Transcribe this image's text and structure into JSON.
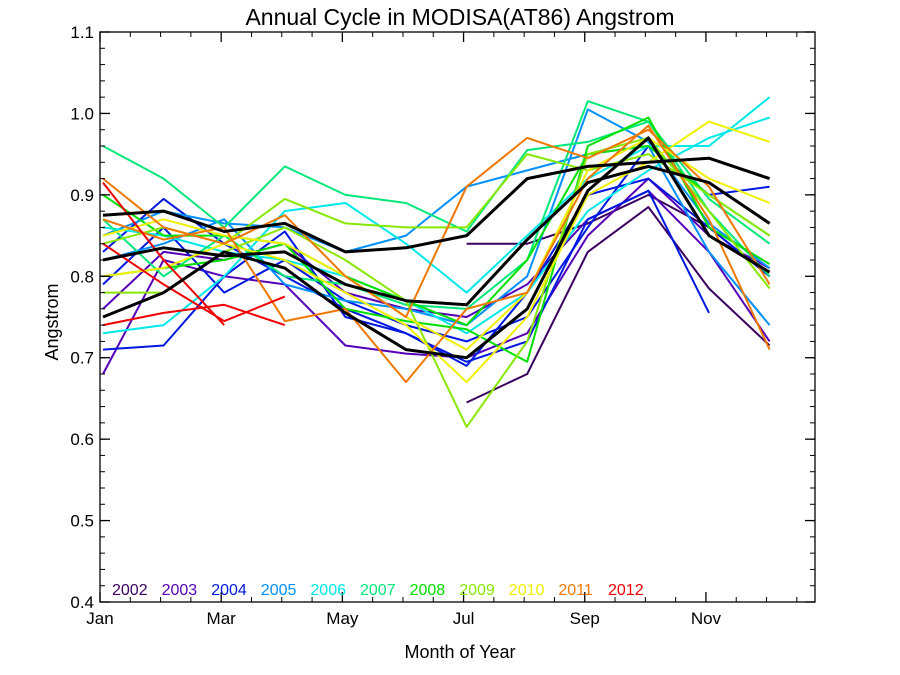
{
  "chart_data": {
    "type": "line",
    "title": "Annual Cycle in MODISA(AT86) Angstrom",
    "xlabel": "Month of Year",
    "ylabel": "Angstrom",
    "ylim": [
      0.4,
      1.1
    ],
    "xlim": [
      1,
      12.8
    ],
    "y_ticks": [
      "0.4",
      "0.5",
      "0.6",
      "0.7",
      "0.8",
      "0.9",
      "1.0",
      "1.1"
    ],
    "x_ticks": [
      {
        "label": "Jan",
        "month": 1
      },
      {
        "label": "Mar",
        "month": 3
      },
      {
        "label": "May",
        "month": 5
      },
      {
        "label": "Jul",
        "month": 7
      },
      {
        "label": "Sep",
        "month": 9
      },
      {
        "label": "Nov",
        "month": 11
      }
    ],
    "months": [
      1.05,
      2.05,
      3.05,
      4.05,
      5.05,
      6.05,
      7.05,
      8.05,
      9.05,
      10.05,
      11.05,
      12.05
    ],
    "legend_position": "bottom-left",
    "series": [
      {
        "name": "2002",
        "color": "#3b0060",
        "values": [
          null,
          null,
          null,
          null,
          null,
          null,
          0.645,
          0.68,
          0.83,
          0.885,
          0.785,
          0.715
        ]
      },
      {
        "name": "2002",
        "color": "#3b0060",
        "values": [
          null,
          null,
          null,
          null,
          null,
          null,
          0.84,
          0.84,
          0.865,
          0.9,
          0.86,
          0.8
        ]
      },
      {
        "name": "2003",
        "color": "#5500b8",
        "values": [
          0.68,
          0.82,
          0.8,
          0.79,
          0.715,
          0.705,
          0.7,
          0.73,
          0.85,
          0.92,
          0.85,
          0.81
        ]
      },
      {
        "name": "2003",
        "color": "#5500b8",
        "values": [
          0.76,
          0.83,
          0.82,
          0.84,
          0.78,
          0.76,
          0.75,
          0.79,
          0.87,
          0.905,
          0.83,
          0.72
        ]
      },
      {
        "name": "2004",
        "color": "#0018e0",
        "values": [
          0.71,
          0.715,
          0.8,
          0.855,
          0.75,
          0.73,
          0.695,
          0.72,
          0.87,
          0.905,
          0.755,
          null
        ]
      },
      {
        "name": "2004",
        "color": "#0018e0",
        "values": [
          0.79,
          0.86,
          0.78,
          0.82,
          0.77,
          0.74,
          0.72,
          0.75,
          0.86,
          0.96,
          0.9,
          0.91
        ]
      },
      {
        "name": "2004",
        "color": "#0018e0",
        "values": [
          0.83,
          0.895,
          0.84,
          0.8,
          0.76,
          0.73,
          0.69,
          0.78,
          0.9,
          0.92,
          0.86,
          0.8
        ]
      },
      {
        "name": "2005",
        "color": "#0090ff",
        "values": [
          0.85,
          0.88,
          0.865,
          0.86,
          0.83,
          0.85,
          0.91,
          0.93,
          0.95,
          0.96,
          0.83,
          0.74
        ]
      },
      {
        "name": "2005",
        "color": "#0090ff",
        "values": [
          0.82,
          0.84,
          0.87,
          0.79,
          0.77,
          0.76,
          0.74,
          0.8,
          1.005,
          0.965,
          0.865,
          0.81
        ]
      },
      {
        "name": "2006",
        "color": "#00e8e8",
        "values": [
          0.73,
          0.74,
          0.8,
          0.88,
          0.89,
          0.84,
          0.78,
          0.85,
          0.92,
          0.96,
          0.96,
          1.02
        ]
      },
      {
        "name": "2006",
        "color": "#00e8e8",
        "values": [
          0.86,
          0.85,
          0.83,
          0.82,
          0.8,
          0.77,
          0.73,
          0.78,
          0.88,
          0.93,
          0.97,
          0.995
        ]
      },
      {
        "name": "2007",
        "color": "#00e878",
        "values": [
          0.96,
          0.92,
          0.86,
          0.935,
          0.9,
          0.89,
          0.855,
          0.955,
          0.965,
          0.99,
          0.88,
          0.8
        ]
      },
      {
        "name": "2007",
        "color": "#00e878",
        "values": [
          0.87,
          0.8,
          0.85,
          0.8,
          0.79,
          0.765,
          0.76,
          0.82,
          1.015,
          0.99,
          0.895,
          0.84
        ]
      },
      {
        "name": "2008",
        "color": "#00e000",
        "values": [
          0.8,
          0.81,
          0.82,
          0.84,
          0.76,
          0.745,
          0.735,
          0.695,
          0.96,
          0.995,
          0.86,
          0.815
        ]
      },
      {
        "name": "2008",
        "color": "#00e000",
        "values": [
          0.9,
          0.85,
          0.85,
          0.84,
          0.8,
          0.77,
          0.74,
          0.82,
          0.95,
          0.96,
          0.9,
          0.85
        ]
      },
      {
        "name": "2009",
        "color": "#88e800",
        "values": [
          0.78,
          0.78,
          0.83,
          0.86,
          0.82,
          0.77,
          0.615,
          0.72,
          0.95,
          0.97,
          0.88,
          0.785
        ]
      },
      {
        "name": "2009",
        "color": "#88e800",
        "values": [
          0.84,
          0.86,
          0.84,
          0.895,
          0.865,
          0.86,
          0.86,
          0.95,
          0.93,
          0.95,
          0.9,
          0.85
        ]
      },
      {
        "name": "2010",
        "color": "#f0f000",
        "values": [
          0.8,
          0.81,
          0.84,
          0.82,
          0.78,
          0.74,
          0.67,
          0.75,
          0.9,
          0.94,
          0.99,
          0.965
        ]
      },
      {
        "name": "2010",
        "color": "#f0f000",
        "values": [
          0.85,
          0.87,
          0.85,
          0.84,
          0.8,
          0.75,
          0.71,
          0.78,
          0.93,
          0.97,
          0.92,
          0.89
        ]
      },
      {
        "name": "2011",
        "color": "#f07800",
        "values": [
          0.92,
          0.86,
          0.84,
          0.875,
          0.8,
          0.75,
          0.91,
          0.97,
          0.945,
          0.98,
          0.91,
          0.79
        ]
      },
      {
        "name": "2011",
        "color": "#f07800",
        "values": [
          0.87,
          0.845,
          0.86,
          0.745,
          0.76,
          0.67,
          0.76,
          0.78,
          0.92,
          0.985,
          0.87,
          0.71
        ]
      },
      {
        "name": "2012",
        "color": "#f00000",
        "values": [
          0.915,
          0.82,
          0.74,
          null,
          null,
          null,
          null,
          null,
          null,
          null,
          null,
          null
        ]
      },
      {
        "name": "2012",
        "color": "#f00000",
        "values": [
          0.74,
          0.755,
          0.765,
          0.74,
          null,
          null,
          null,
          null,
          null,
          null,
          null,
          null
        ]
      },
      {
        "name": "2012",
        "color": "#f00000",
        "values": [
          0.84,
          0.79,
          0.745,
          0.775,
          null,
          null,
          null,
          null,
          null,
          null,
          null,
          null
        ]
      },
      {
        "name": "",
        "color": "#000000",
        "values": [
          0.875,
          0.88,
          0.855,
          0.865,
          0.83,
          0.835,
          0.85,
          0.92,
          0.935,
          0.94,
          0.945,
          0.92
        ]
      },
      {
        "name": "",
        "color": "#000000",
        "values": [
          0.82,
          0.835,
          0.825,
          0.83,
          0.79,
          0.77,
          0.765,
          0.845,
          0.915,
          0.935,
          0.915,
          0.865
        ]
      },
      {
        "name": "",
        "color": "#000000",
        "values": [
          0.75,
          0.78,
          0.83,
          0.81,
          0.755,
          0.71,
          0.7,
          0.76,
          0.905,
          0.97,
          0.85,
          0.805
        ]
      }
    ],
    "legend": [
      {
        "label": "2002",
        "color": "#3b0060"
      },
      {
        "label": "2003",
        "color": "#5500b8"
      },
      {
        "label": "2004",
        "color": "#0018e0"
      },
      {
        "label": "2005",
        "color": "#0090ff"
      },
      {
        "label": "2006",
        "color": "#00e8e8"
      },
      {
        "label": "2007",
        "color": "#00e878"
      },
      {
        "label": "2008",
        "color": "#00e000"
      },
      {
        "label": "2009",
        "color": "#88e800"
      },
      {
        "label": "2010",
        "color": "#f0f000"
      },
      {
        "label": "2011",
        "color": "#f07800"
      },
      {
        "label": "2012",
        "color": "#f00000"
      }
    ]
  }
}
